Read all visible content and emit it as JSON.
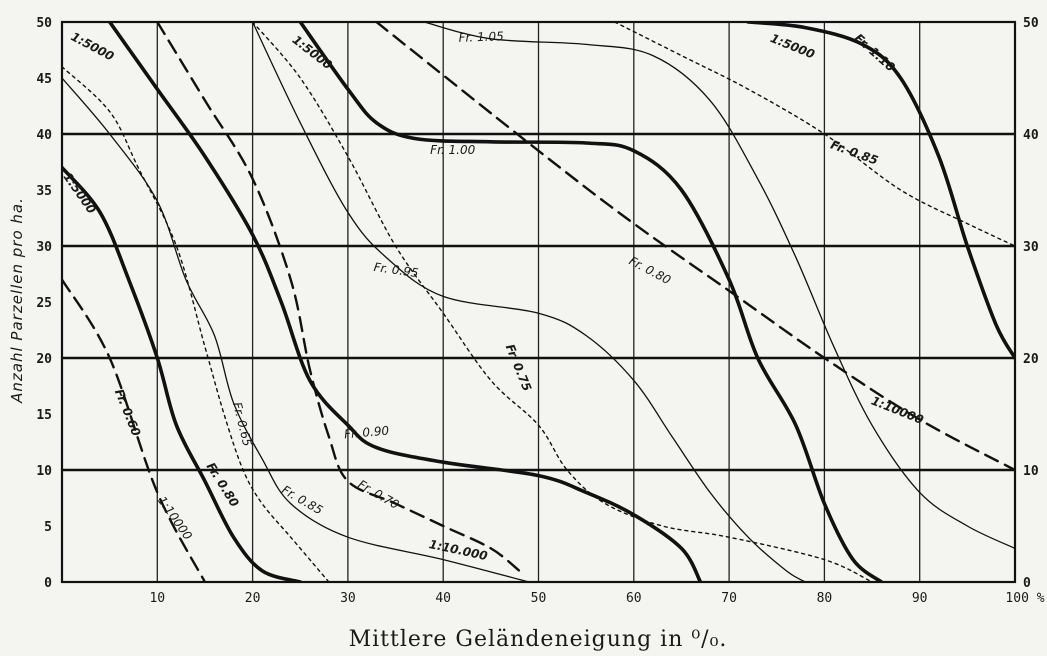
{
  "chart_data": {
    "type": "line",
    "xlabel": "Mittlere Geländeneigung in ⁰/₀.",
    "ylabel": "Anzahl Parzellen pro ha.",
    "xlim": [
      0,
      100
    ],
    "ylim": [
      0,
      50
    ],
    "grid": true,
    "legend": "none",
    "x_tick_labels": [
      "10",
      "20",
      "30",
      "40",
      "50",
      "60",
      "70",
      "80",
      "90",
      "100 %"
    ],
    "x_ticks": [
      10,
      20,
      30,
      40,
      50,
      60,
      70,
      80,
      90,
      100
    ],
    "y_tick_labels_left": [
      "0",
      "5",
      "10",
      "15",
      "20",
      "25",
      "30",
      "35",
      "40",
      "45",
      "50"
    ],
    "y_ticks_left": [
      0,
      5,
      10,
      15,
      20,
      25,
      30,
      35,
      40,
      45,
      50
    ],
    "y_tick_labels_right": [
      "0",
      "10",
      "20",
      "30",
      "40",
      "50"
    ],
    "y_ticks_right": [
      0,
      10,
      20,
      30,
      40,
      50
    ],
    "series": [
      {
        "name": "Fr. 0.60",
        "scale": "1:10000",
        "style": "dashed",
        "points": [
          [
            0,
            27
          ],
          [
            5,
            20
          ],
          [
            10,
            8
          ],
          [
            15,
            0
          ]
        ]
      },
      {
        "name": "Fr. 0.80",
        "scale": "1:5000",
        "style": "thick",
        "points": [
          [
            0,
            37
          ],
          [
            4,
            33
          ],
          [
            7,
            27
          ],
          [
            10,
            20
          ],
          [
            12,
            14
          ],
          [
            15,
            9
          ],
          [
            18,
            4
          ],
          [
            21,
            1
          ],
          [
            25,
            0
          ]
        ]
      },
      {
        "name": "Fr. 0.65",
        "scale": "",
        "style": "dotted",
        "points": [
          [
            0,
            46
          ],
          [
            5,
            42
          ],
          [
            8,
            37
          ],
          [
            12,
            30
          ],
          [
            15,
            21
          ],
          [
            17,
            15
          ],
          [
            19,
            10
          ],
          [
            21,
            7
          ],
          [
            24,
            4
          ],
          [
            27,
            1
          ],
          [
            28,
            0
          ]
        ]
      },
      {
        "name": "",
        "scale": "",
        "style": "thin",
        "points": [
          [
            0,
            45
          ],
          [
            5,
            40
          ],
          [
            10,
            34
          ],
          [
            13,
            27
          ],
          [
            16,
            22
          ],
          [
            18,
            16
          ],
          [
            21,
            11
          ],
          [
            24,
            7
          ],
          [
            30,
            4
          ],
          [
            40,
            2
          ],
          [
            49,
            0
          ]
        ]
      },
      {
        "name": "Fr. 0.90",
        "scale": "1:5000",
        "style": "thick",
        "points": [
          [
            5,
            50
          ],
          [
            10,
            44
          ],
          [
            15,
            38
          ],
          [
            20,
            31
          ],
          [
            23,
            25
          ],
          [
            26,
            18
          ],
          [
            30,
            14
          ],
          [
            33,
            12
          ],
          [
            40,
            10.7
          ],
          [
            50,
            9.5
          ],
          [
            55,
            8
          ],
          [
            60,
            6
          ],
          [
            65,
            3
          ],
          [
            67,
            0
          ]
        ]
      },
      {
        "name": "Fr. 0.70",
        "scale": "1:10000",
        "style": "dashed",
        "points": [
          [
            10,
            50
          ],
          [
            15,
            43
          ],
          [
            20,
            36
          ],
          [
            24,
            27
          ],
          [
            26,
            19
          ],
          [
            28,
            13
          ],
          [
            30,
            9
          ],
          [
            35,
            7
          ],
          [
            40,
            5
          ],
          [
            45,
            3
          ],
          [
            48,
            1
          ]
        ]
      },
      {
        "name": "Fr. 0.85",
        "scale": "",
        "style": "thin",
        "points": [
          [
            20,
            50
          ],
          [
            25,
            41
          ],
          [
            30,
            33
          ],
          [
            34,
            29
          ],
          [
            40,
            25.5
          ],
          [
            50,
            24
          ],
          [
            55,
            22
          ],
          [
            60,
            18
          ],
          [
            64,
            13
          ],
          [
            68,
            8
          ],
          [
            72,
            4
          ],
          [
            76,
            1
          ],
          [
            78,
            0
          ]
        ]
      },
      {
        "name": "Fr. 0.75",
        "scale": "",
        "style": "dotted",
        "points": [
          [
            20,
            50
          ],
          [
            25,
            45
          ],
          [
            30,
            38
          ],
          [
            35,
            30
          ],
          [
            40,
            24
          ],
          [
            45,
            18
          ],
          [
            50,
            14
          ],
          [
            53,
            10
          ],
          [
            57,
            7
          ],
          [
            63,
            5
          ],
          [
            70,
            4
          ],
          [
            80,
            2
          ],
          [
            85,
            0
          ]
        ]
      },
      {
        "name": "Fr. 1.00",
        "scale": "1:5000",
        "style": "thick",
        "points": [
          [
            25,
            50
          ],
          [
            30,
            44
          ],
          [
            33,
            41
          ],
          [
            37,
            39.6
          ],
          [
            45,
            39.3
          ],
          [
            55,
            39.2
          ],
          [
            60,
            38.5
          ],
          [
            65,
            35
          ],
          [
            70,
            27
          ],
          [
            73,
            20
          ],
          [
            77,
            14
          ],
          [
            80,
            7
          ],
          [
            83,
            2
          ],
          [
            86,
            0
          ]
        ]
      },
      {
        "name": "Fr. 0.80",
        "scale": "1:10000",
        "style": "dashed",
        "points": [
          [
            33,
            50
          ],
          [
            50,
            38.5
          ],
          [
            60,
            32
          ],
          [
            70,
            26
          ],
          [
            80,
            20
          ],
          [
            90,
            14.5
          ],
          [
            100,
            10
          ]
        ]
      },
      {
        "name": "Fr. 1.05",
        "scale": "",
        "style": "thin",
        "points": [
          [
            38,
            50
          ],
          [
            45,
            48.5
          ],
          [
            55,
            48
          ],
          [
            62,
            47
          ],
          [
            68,
            43
          ],
          [
            73,
            36
          ],
          [
            77,
            29
          ],
          [
            81,
            21
          ],
          [
            85,
            14
          ],
          [
            90,
            8
          ],
          [
            95,
            5
          ],
          [
            100,
            3
          ]
        ]
      },
      {
        "name": "Fr. 0.85",
        "scale": "",
        "style": "dotted",
        "points": [
          [
            58,
            50
          ],
          [
            65,
            47
          ],
          [
            72,
            44
          ],
          [
            80,
            40
          ],
          [
            88,
            35
          ],
          [
            95,
            32
          ],
          [
            100,
            30
          ]
        ]
      },
      {
        "name": "Fr. 1.10",
        "scale": "1:5000",
        "style": "thick",
        "points": [
          [
            72,
            50
          ],
          [
            78,
            49.5
          ],
          [
            84,
            48
          ],
          [
            88,
            45
          ],
          [
            92,
            38
          ],
          [
            95,
            30
          ],
          [
            98,
            23
          ],
          [
            100,
            20
          ]
        ]
      }
    ],
    "curve_labels": [
      {
        "text": "1:5000",
        "x": 3,
        "y": 47.5,
        "angle": 28,
        "weight": "bold"
      },
      {
        "text": "1:5000",
        "x": 1.5,
        "y": 34.5,
        "angle": 55,
        "weight": "bold"
      },
      {
        "text": "Fr. 0.60",
        "x": 6.5,
        "y": 15,
        "angle": 68,
        "weight": "bold"
      },
      {
        "text": "1:10000",
        "x": 11.5,
        "y": 5.5,
        "angle": 55,
        "weight": "normal"
      },
      {
        "text": "Fr. 0.80",
        "x": 16.5,
        "y": 8.5,
        "angle": 58,
        "weight": "bold"
      },
      {
        "text": "Fr. 0.65",
        "x": 18.5,
        "y": 14,
        "angle": 76,
        "weight": "normal"
      },
      {
        "text": "Fr. 0.85",
        "x": 25,
        "y": 7,
        "angle": 30,
        "weight": "normal"
      },
      {
        "text": "Fr. 0.70",
        "x": 33,
        "y": 7.5,
        "angle": 30,
        "weight": "normal"
      },
      {
        "text": "1:10.000",
        "x": 41.5,
        "y": 2.5,
        "angle": 12,
        "weight": "bold"
      },
      {
        "text": "Fr. 0.90",
        "x": 32,
        "y": 13,
        "angle": -5,
        "weight": "normal"
      },
      {
        "text": "1:5000",
        "x": 26,
        "y": 47,
        "angle": 38,
        "weight": "bold"
      },
      {
        "text": "Fr. 0.95",
        "x": 35,
        "y": 27.5,
        "angle": 8,
        "weight": "normal"
      },
      {
        "text": "Fr. 1.05",
        "x": 44,
        "y": 48.3,
        "angle": -2,
        "weight": "normal"
      },
      {
        "text": "Fr. 1.00",
        "x": 41,
        "y": 38.2,
        "angle": 0,
        "weight": "normal"
      },
      {
        "text": "Fr. 0.75",
        "x": 47.5,
        "y": 19,
        "angle": 68,
        "weight": "bold"
      },
      {
        "text": "Fr. 0.80",
        "x": 61.5,
        "y": 27.5,
        "angle": 28,
        "weight": "normal"
      },
      {
        "text": "1:5000",
        "x": 76.5,
        "y": 47.5,
        "angle": 22,
        "weight": "bold"
      },
      {
        "text": "Fr. 1.10",
        "x": 85,
        "y": 47,
        "angle": 42,
        "weight": "bold"
      },
      {
        "text": "Fr. 0.85",
        "x": 83,
        "y": 38,
        "angle": 20,
        "weight": "bold"
      },
      {
        "text": "1:10000",
        "x": 87.5,
        "y": 15,
        "angle": 22,
        "weight": "bold"
      }
    ]
  }
}
